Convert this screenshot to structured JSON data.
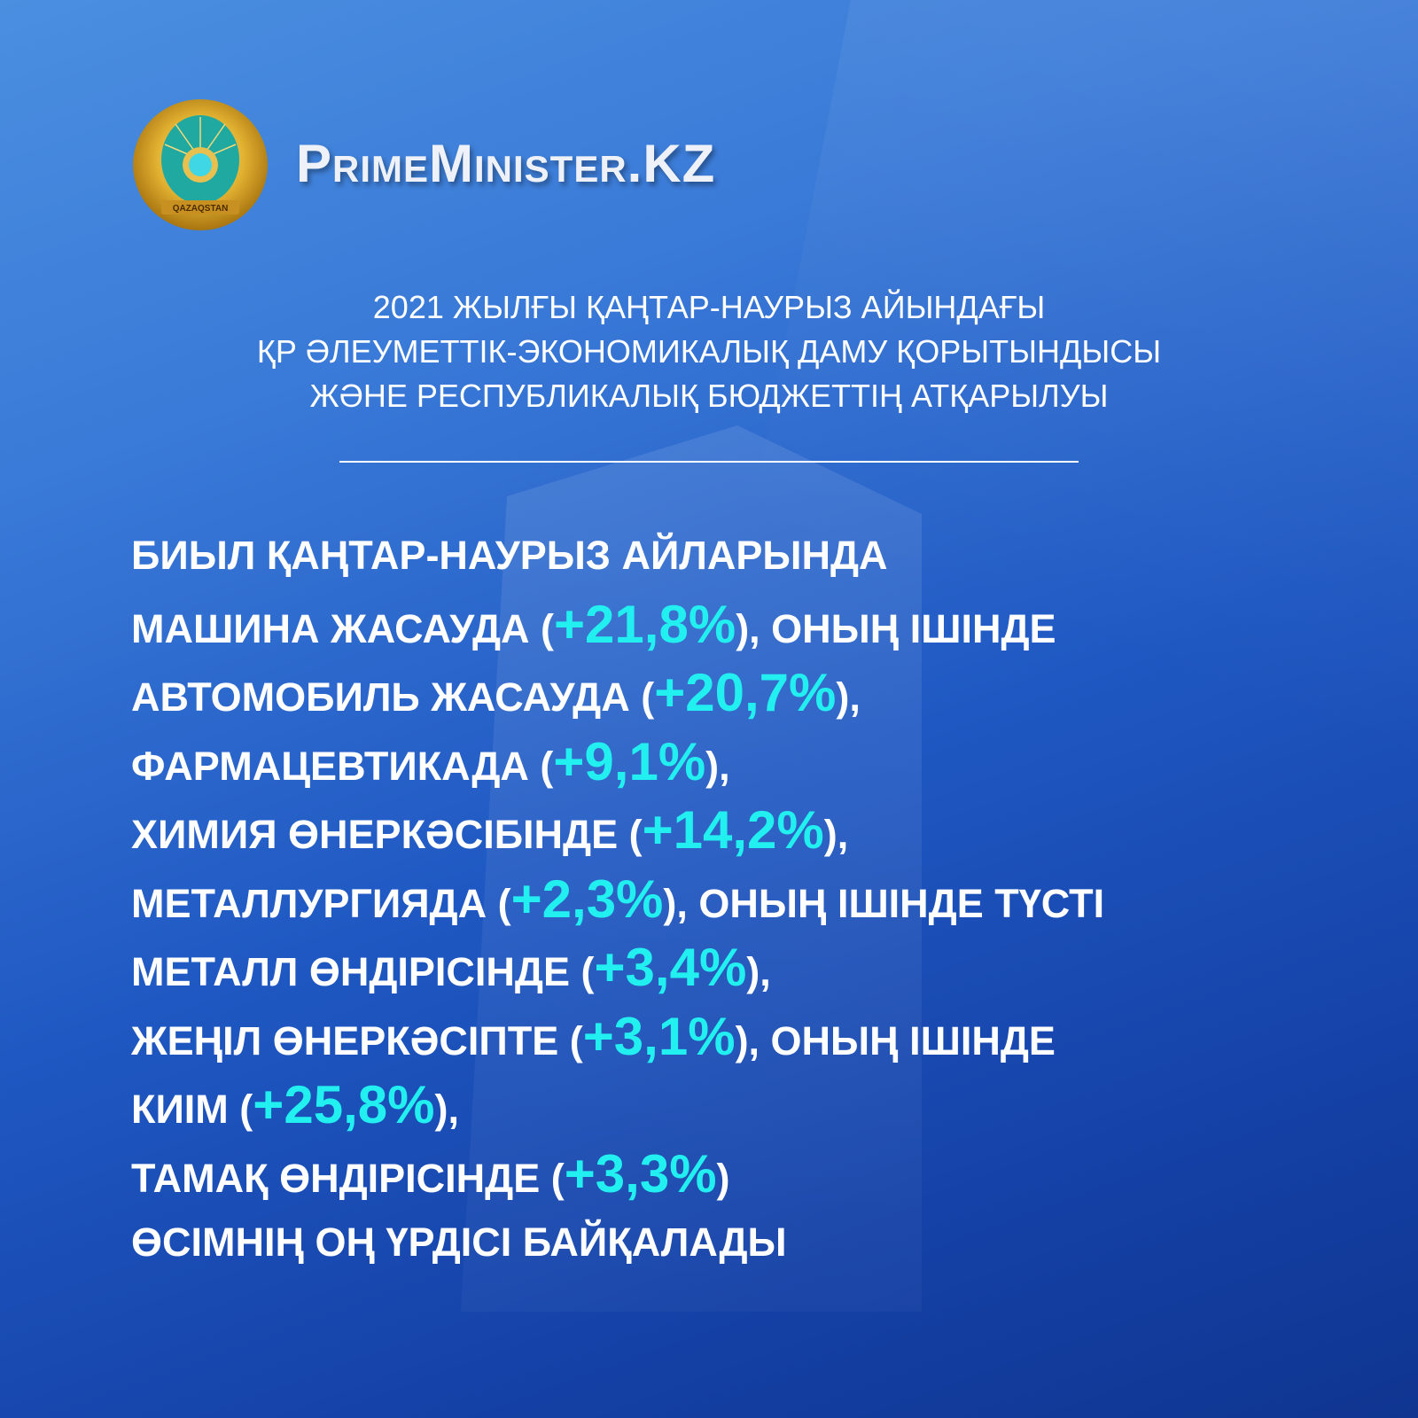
{
  "brand": {
    "name": "PrimeMinister.KZ",
    "emblem_text": "QAZAQSTAN"
  },
  "colors": {
    "highlight": "#22f0f0",
    "text": "#ffffff",
    "background": "#1f58c2"
  },
  "subtitle": [
    "2021 ЖЫЛҒЫ ҚАҢТАР-НАУРЫЗ АЙЫНДАҒЫ",
    "ҚР ӘЛЕУМЕТТІК-ЭКОНОМИКАЛЫҚ ДАМУ ҚОРЫТЫНДЫСЫ",
    "ЖӘНЕ РЕСПУБЛИКАЛЫҚ БЮДЖЕТТІҢ АТҚАРЫЛУЫ"
  ],
  "body_lines": [
    [
      {
        "text": "БИЫЛ ҚАҢТАР-НАУРЫЗ АЙЛАРЫНДА"
      }
    ],
    [
      {
        "text": "МАШИНА ЖАСАУДА ("
      },
      {
        "text": "+21,8%",
        "highlight": true
      },
      {
        "text": "), ОНЫҢ ІШІНДЕ"
      }
    ],
    [
      {
        "text": "АВТОМОБИЛЬ ЖАСАУДА ("
      },
      {
        "text": "+20,7%",
        "highlight": true
      },
      {
        "text": "),"
      }
    ],
    [
      {
        "text": "ФАРМАЦЕВТИКАДА ("
      },
      {
        "text": "+9,1%",
        "highlight": true
      },
      {
        "text": "),"
      }
    ],
    [
      {
        "text": "ХИМИЯ ӨНЕРКӘСІБІНДЕ ("
      },
      {
        "text": "+14,2%",
        "highlight": true
      },
      {
        "text": "),"
      }
    ],
    [
      {
        "text": "МЕТАЛЛУРГИЯДА ("
      },
      {
        "text": "+2,3%",
        "highlight": true
      },
      {
        "text": "), ОНЫҢ ІШІНДЕ ТҮСТІ"
      }
    ],
    [
      {
        "text": "МЕТАЛЛ ӨНДІРІСІНДЕ ("
      },
      {
        "text": "+3,4%",
        "highlight": true
      },
      {
        "text": "),"
      }
    ],
    [
      {
        "text": "ЖЕҢІЛ ӨНЕРКӘСІПТЕ ("
      },
      {
        "text": "+3,1%",
        "highlight": true
      },
      {
        "text": "), ОНЫҢ ІШІНДЕ"
      }
    ],
    [
      {
        "text": "КИІМ ("
      },
      {
        "text": "+25,8%",
        "highlight": true
      },
      {
        "text": "),"
      }
    ],
    [
      {
        "text": "ТАМАҚ ӨНДІРІСІНДЕ ("
      },
      {
        "text": "+3,3%",
        "highlight": true
      },
      {
        "text": ")"
      }
    ],
    [
      {
        "text": "ӨСІМНІҢ ОҢ ҮРДІСІ БАЙҚАЛАДЫ"
      }
    ]
  ]
}
